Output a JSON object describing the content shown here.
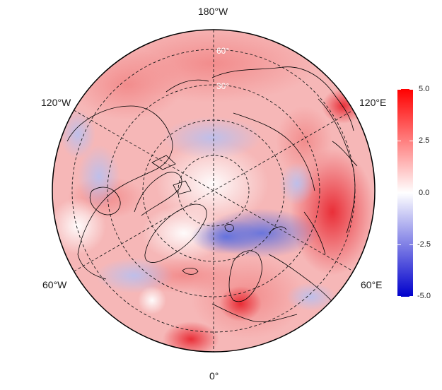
{
  "map": {
    "projection": "north-polar-stereographic",
    "longitude_labels": {
      "top": "180°W",
      "bottom": "0°",
      "upper_left": "120°W",
      "lower_left": "60°W",
      "upper_right": "120°E",
      "lower_right": "60°E"
    },
    "latitude_labels": [
      "60°",
      "30°"
    ],
    "colormap": {
      "low_color": "#0000cc",
      "mid_color": "#ffffff",
      "high_color": "#ff0000"
    }
  },
  "colorbar": {
    "tick_labels": [
      "5.0",
      "2.5",
      "0.0",
      "-2.5",
      "-5.0"
    ],
    "max": 5.0,
    "min": -5.0
  }
}
